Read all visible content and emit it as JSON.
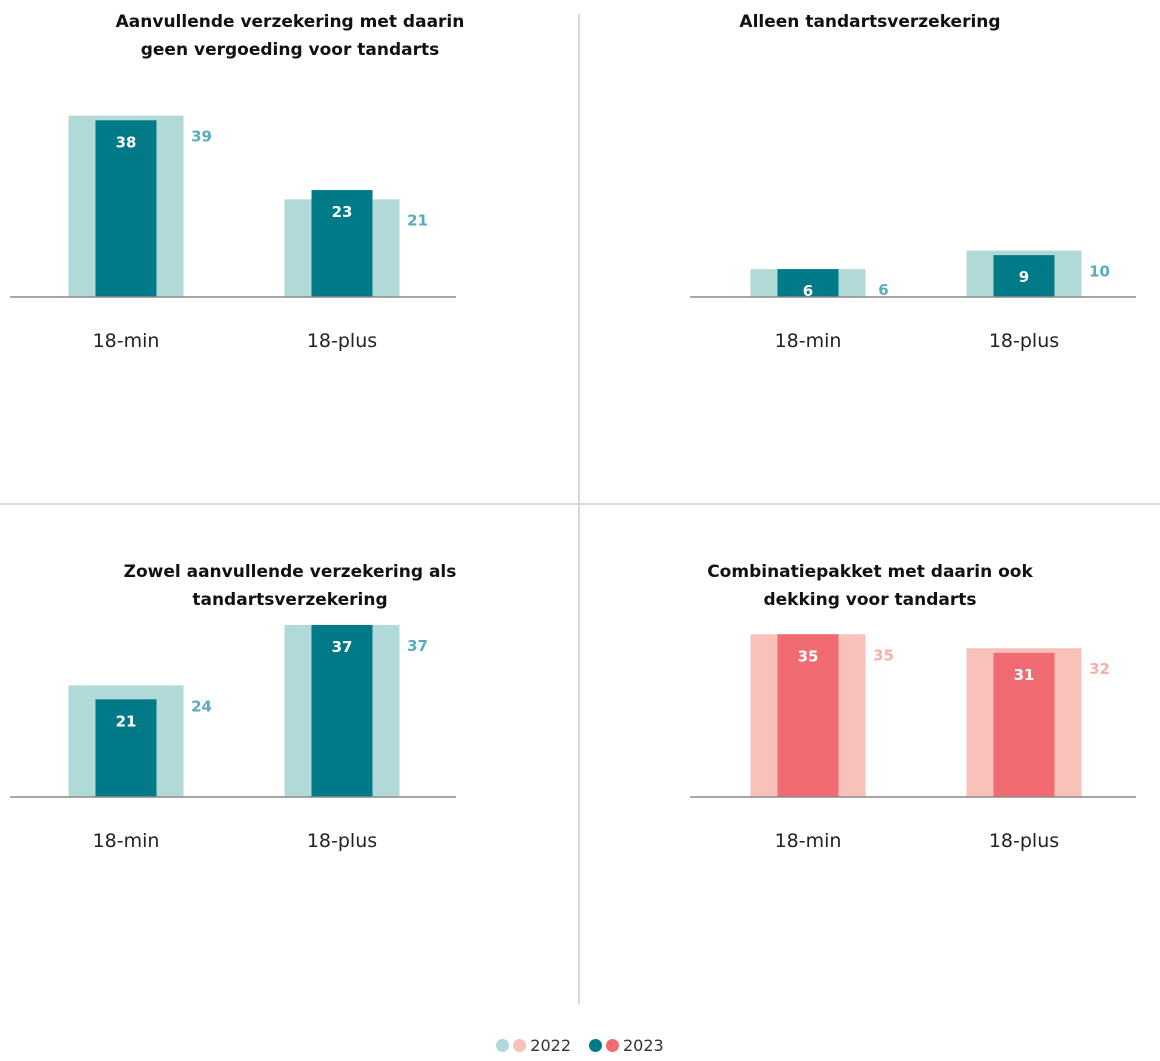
{
  "colors": {
    "teal_2022": "#b0d9d8",
    "teal_2023": "#007a87",
    "teal_label_2022": "#58acbc",
    "red_2022": "#f8c1b9",
    "red_2023": "#f06b72",
    "red_label_2022": "#f7b0a8",
    "axis": "#8a8a8a",
    "inner_label": "#ffffff"
  },
  "legend": {
    "label_2022": "2022",
    "label_2023": "2023"
  },
  "chart_data": [
    {
      "type": "bar",
      "title_lines": [
        "Aanvullende verzekering met daarin",
        "geen vergoeding voor tandarts"
      ],
      "categories": [
        "18-min",
        "18-plus"
      ],
      "palette": "teal",
      "ylim": [
        0,
        40
      ],
      "series": [
        {
          "name": "2022",
          "values": [
            39,
            21
          ]
        },
        {
          "name": "2023",
          "values": [
            38,
            23
          ]
        }
      ]
    },
    {
      "type": "bar",
      "title_lines": [
        "Alleen tandartsverzekering"
      ],
      "categories": [
        "18-min",
        "18-plus"
      ],
      "palette": "teal",
      "ylim": [
        0,
        40
      ],
      "series": [
        {
          "name": "2022",
          "values": [
            6,
            10
          ]
        },
        {
          "name": "2023",
          "values": [
            6,
            9
          ]
        }
      ]
    },
    {
      "type": "bar",
      "title_lines": [
        "Zowel aanvullende verzekering als",
        "tandartsverzekering"
      ],
      "categories": [
        "18-min",
        "18-plus"
      ],
      "palette": "teal",
      "ylim": [
        0,
        40
      ],
      "series": [
        {
          "name": "2022",
          "values": [
            24,
            37
          ]
        },
        {
          "name": "2023",
          "values": [
            21,
            37
          ]
        }
      ]
    },
    {
      "type": "bar",
      "title_lines": [
        "Combinatiepakket met daarin ook",
        "dekking voor tandarts"
      ],
      "categories": [
        "18-min",
        "18-plus"
      ],
      "palette": "red",
      "ylim": [
        0,
        40
      ],
      "series": [
        {
          "name": "2022",
          "values": [
            35,
            32
          ]
        },
        {
          "name": "2023",
          "values": [
            35,
            31
          ]
        }
      ]
    }
  ]
}
